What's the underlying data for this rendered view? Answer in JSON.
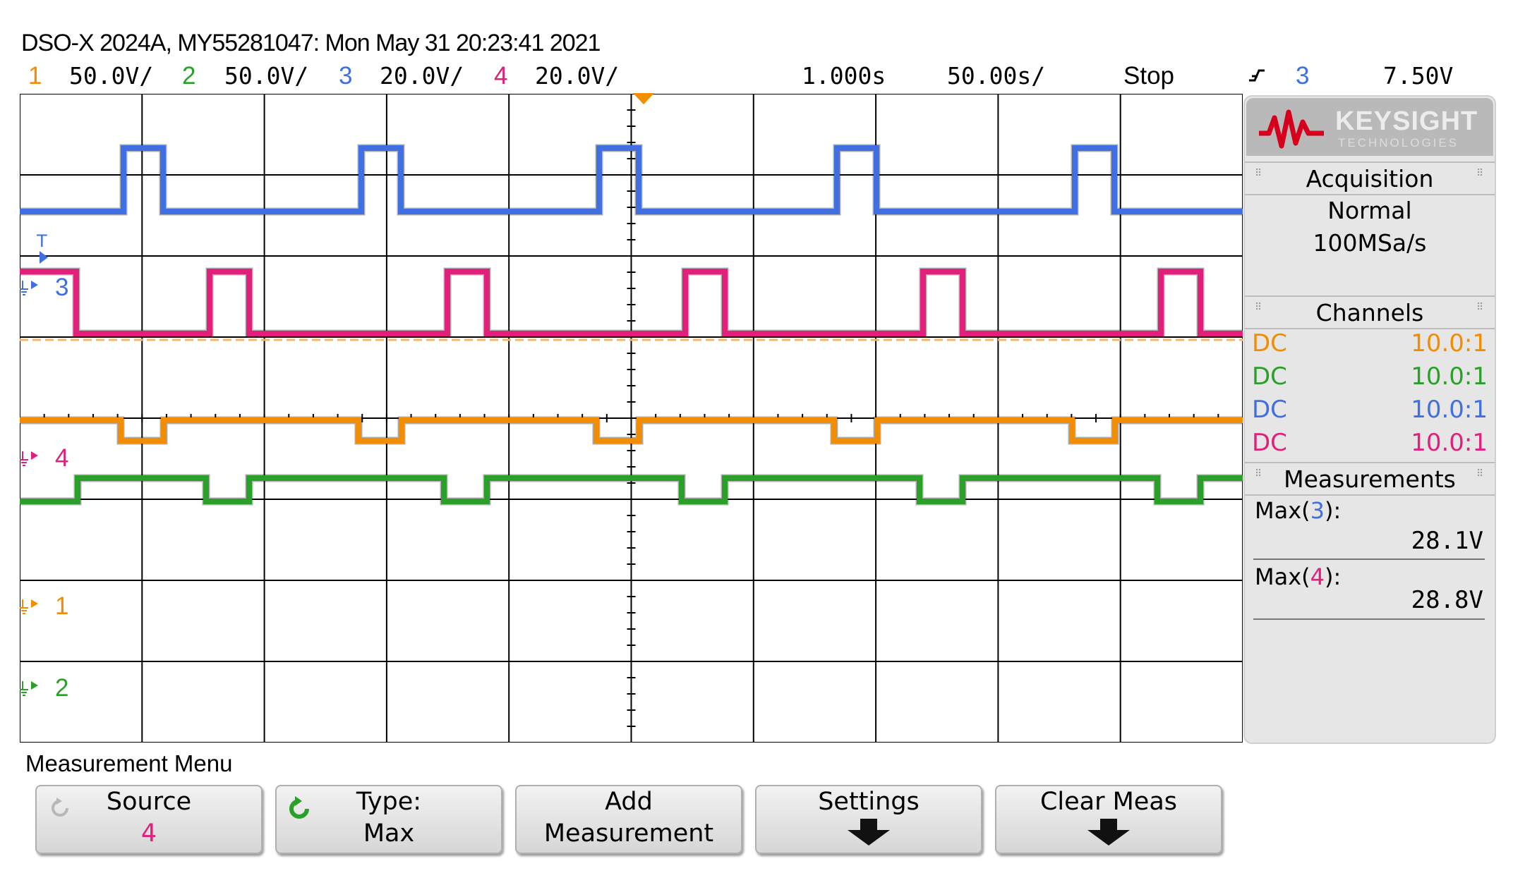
{
  "header": {
    "title": "DSO-X 2024A, MY55281047: Mon May 31 20:23:41 2021",
    "channels": [
      {
        "num": "1",
        "scale": "50.0V/",
        "color": "#f28c00"
      },
      {
        "num": "2",
        "scale": "50.0V/",
        "color": "#2aa02a"
      },
      {
        "num": "3",
        "scale": "20.0V/",
        "color": "#3f6fe0"
      },
      {
        "num": "4",
        "scale": "20.0V/",
        "color": "#e0207a"
      }
    ],
    "delay": "1.000s",
    "timebase": "50.00s/",
    "run_state": "Stop",
    "trigger_source": "3",
    "trigger_level": "7.50V"
  },
  "side_panel": {
    "brand": "KEYSIGHT",
    "brand_sub": "TECHNOLOGIES",
    "acquisition": {
      "title": "Acquisition",
      "mode": "Normal",
      "rate": "100MSa/s"
    },
    "channels": {
      "title": "Channels",
      "rows": [
        {
          "coupling": "DC",
          "probe": "10.0:1",
          "color": "#f28c00"
        },
        {
          "coupling": "DC",
          "probe": "10.0:1",
          "color": "#2aa02a"
        },
        {
          "coupling": "DC",
          "probe": "10.0:1",
          "color": "#3f6fe0"
        },
        {
          "coupling": "DC",
          "probe": "10.0:1",
          "color": "#e0207a"
        }
      ]
    },
    "measurements": {
      "title": "Measurements",
      "items": [
        {
          "label_prefix": "Max(",
          "ch": "3",
          "label_suffix": "):",
          "value": "28.1V",
          "color": "#3f6fe0"
        },
        {
          "label_prefix": "Max(",
          "ch": "4",
          "label_suffix": "):",
          "value": "28.8V",
          "color": "#e0207a"
        }
      ]
    }
  },
  "waveform_labels": {
    "ch3": "3",
    "ch4": "4",
    "ch1": "1",
    "ch2": "2",
    "trig_marker": "T"
  },
  "menu": {
    "title": "Measurement Menu",
    "softkeys": [
      {
        "line1": "Source",
        "line2": "4"
      },
      {
        "line1": "Type:",
        "line2": "Max"
      },
      {
        "line1": "Add",
        "line2": "Measurement"
      },
      {
        "line1": "Settings",
        "line2": ""
      },
      {
        "line1": "Clear Meas",
        "line2": ""
      }
    ]
  },
  "colors": {
    "ch1": "#f28c00",
    "ch2": "#2aa02a",
    "ch3": "#3f6fe0",
    "ch4": "#e0207a",
    "grid": "#000000"
  }
}
